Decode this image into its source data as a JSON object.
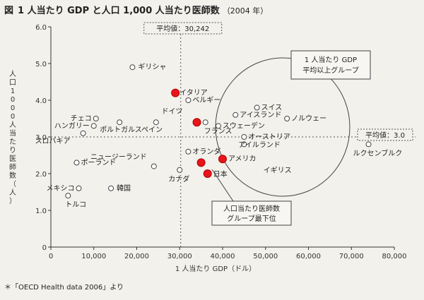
{
  "chart_data": {
    "type": "scatter",
    "figure_label": "図",
    "title": "1 人当たり GDP と人口 1,000 人当たり医師数",
    "subtitle": "（2004 年）",
    "xlabel": "1 人当たり GDP（ドル）",
    "ylabel": "人口1000人当たり医師数（人）",
    "xlim": [
      0,
      80000
    ],
    "ylim": [
      0,
      6.0
    ],
    "xticks": [
      "0",
      "10,000",
      "20,000",
      "30,000",
      "40,000",
      "50,000",
      "60,000",
      "70,000",
      "80,000"
    ],
    "yticks": [
      "0",
      "1.0",
      "2.0",
      "3.0",
      "4.0",
      "5.0",
      "6.0"
    ],
    "grid": false,
    "source": "＊「OECD Health data 2006」より",
    "reference_lines": {
      "x_mean_label": "平均値：30,242",
      "x_mean": 30242,
      "y_mean_label": "平均値：3.0",
      "y_mean": 3.0
    },
    "annotations": {
      "gdp_group": [
        "1 人当たり GDP",
        "平均以上グループ"
      ],
      "doctor_group": [
        "人口当たり医師数",
        "グループ最下位"
      ]
    },
    "points": [
      {
        "name": "ギリシャ",
        "x": 19000,
        "y": 4.9,
        "highlight": false
      },
      {
        "name": "イタリア",
        "x": 29000,
        "y": 4.2,
        "highlight": true
      },
      {
        "name": "ベルギー",
        "x": 32000,
        "y": 4.0,
        "highlight": false
      },
      {
        "name": "スイス",
        "x": 48000,
        "y": 3.8,
        "highlight": false
      },
      {
        "name": "ドイツ",
        "x": 34000,
        "y": 3.4,
        "highlight": true
      },
      {
        "name": "アイスランド",
        "x": 43000,
        "y": 3.6,
        "highlight": false
      },
      {
        "name": "ノルウェー",
        "x": 55000,
        "y": 3.5,
        "highlight": false
      },
      {
        "name": "スウェーデン",
        "x": 39000,
        "y": 3.3,
        "highlight": false
      },
      {
        "name": "フランス",
        "x": 36000,
        "y": 3.4,
        "highlight": false
      },
      {
        "name": "チェコ",
        "x": 10500,
        "y": 3.5,
        "highlight": false
      },
      {
        "name": "ハンガリー",
        "x": 10000,
        "y": 3.3,
        "highlight": false
      },
      {
        "name": "ポルトガル",
        "x": 16000,
        "y": 3.4,
        "highlight": false
      },
      {
        "name": "スペイン",
        "x": 24500,
        "y": 3.4,
        "highlight": false
      },
      {
        "name": "スロバキア",
        "x": 7500,
        "y": 3.1,
        "highlight": false
      },
      {
        "name": "オーストリア",
        "x": 45000,
        "y": 3.0,
        "highlight": false
      },
      {
        "name": "アイルランド",
        "x": 45000,
        "y": 2.8,
        "highlight": false
      },
      {
        "name": "ルクセンブルク",
        "x": 74000,
        "y": 2.8,
        "highlight": false
      },
      {
        "name": "ニュージーランド",
        "x": 24000,
        "y": 2.2,
        "highlight": false
      },
      {
        "name": "オランダ",
        "x": 32000,
        "y": 2.6,
        "highlight": false
      },
      {
        "name": "ポーランド",
        "x": 6000,
        "y": 2.3,
        "highlight": false
      },
      {
        "name": "アメリカ",
        "x": 40000,
        "y": 2.4,
        "highlight": true
      },
      {
        "name": "イギリス",
        "x": 35000,
        "y": 2.3,
        "highlight": true
      },
      {
        "name": "日本",
        "x": 36500,
        "y": 2.0,
        "highlight": true
      },
      {
        "name": "カナダ",
        "x": 30000,
        "y": 2.1,
        "highlight": false
      },
      {
        "name": "メキシコ",
        "x": 6500,
        "y": 1.6,
        "highlight": false
      },
      {
        "name": "韓国",
        "x": 14000,
        "y": 1.6,
        "highlight": false
      },
      {
        "name": "トルコ",
        "x": 4000,
        "y": 1.4,
        "highlight": false
      }
    ]
  }
}
